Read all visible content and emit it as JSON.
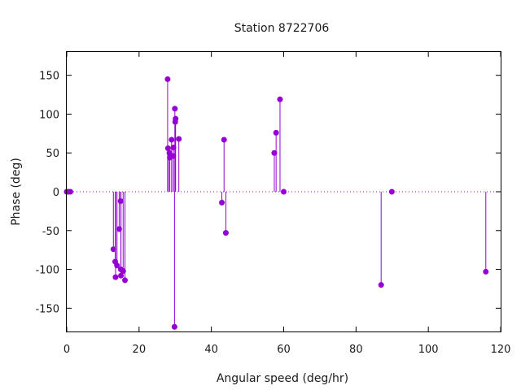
{
  "chart_data": {
    "type": "scatter",
    "title": "Station 8722706",
    "xlabel": "Angular speed (deg/hr)",
    "ylabel": "Phase (deg)",
    "xlim": [
      0,
      120
    ],
    "ylim": [
      -180,
      180
    ],
    "xticks": [
      0,
      20,
      40,
      60,
      80,
      100,
      120
    ],
    "yticks": [
      -150,
      -100,
      -50,
      0,
      50,
      100,
      150
    ],
    "grid": false,
    "legend": "none",
    "style": "impulses-with-points",
    "color": "#9400d3",
    "points": [
      {
        "x": 0.0,
        "y": 0
      },
      {
        "x": 0.5,
        "y": 0
      },
      {
        "x": 1.0,
        "y": 0
      },
      {
        "x": 12.9,
        "y": -74
      },
      {
        "x": 13.4,
        "y": -90
      },
      {
        "x": 13.5,
        "y": -110
      },
      {
        "x": 13.9,
        "y": -95
      },
      {
        "x": 14.5,
        "y": -48
      },
      {
        "x": 14.9,
        "y": -12
      },
      {
        "x": 14.96,
        "y": -100
      },
      {
        "x": 15.0,
        "y": -108
      },
      {
        "x": 15.6,
        "y": -102
      },
      {
        "x": 16.1,
        "y": -114
      },
      {
        "x": 27.9,
        "y": 145
      },
      {
        "x": 28.0,
        "y": 56
      },
      {
        "x": 28.4,
        "y": 50
      },
      {
        "x": 28.5,
        "y": 44
      },
      {
        "x": 29.0,
        "y": 67
      },
      {
        "x": 29.5,
        "y": 57
      },
      {
        "x": 29.45,
        "y": 46
      },
      {
        "x": 29.9,
        "y": 107
      },
      {
        "x": 30.0,
        "y": 90
      },
      {
        "x": 30.1,
        "y": 94
      },
      {
        "x": 29.8,
        "y": -174
      },
      {
        "x": 31.0,
        "y": 68
      },
      {
        "x": 42.9,
        "y": -14
      },
      {
        "x": 43.5,
        "y": 67
      },
      {
        "x": 44.0,
        "y": -53
      },
      {
        "x": 57.4,
        "y": 50
      },
      {
        "x": 57.9,
        "y": 76
      },
      {
        "x": 58.98,
        "y": 119
      },
      {
        "x": 60.0,
        "y": 0
      },
      {
        "x": 86.95,
        "y": -120
      },
      {
        "x": 89.9,
        "y": 0
      },
      {
        "x": 115.9,
        "y": -103
      }
    ]
  }
}
